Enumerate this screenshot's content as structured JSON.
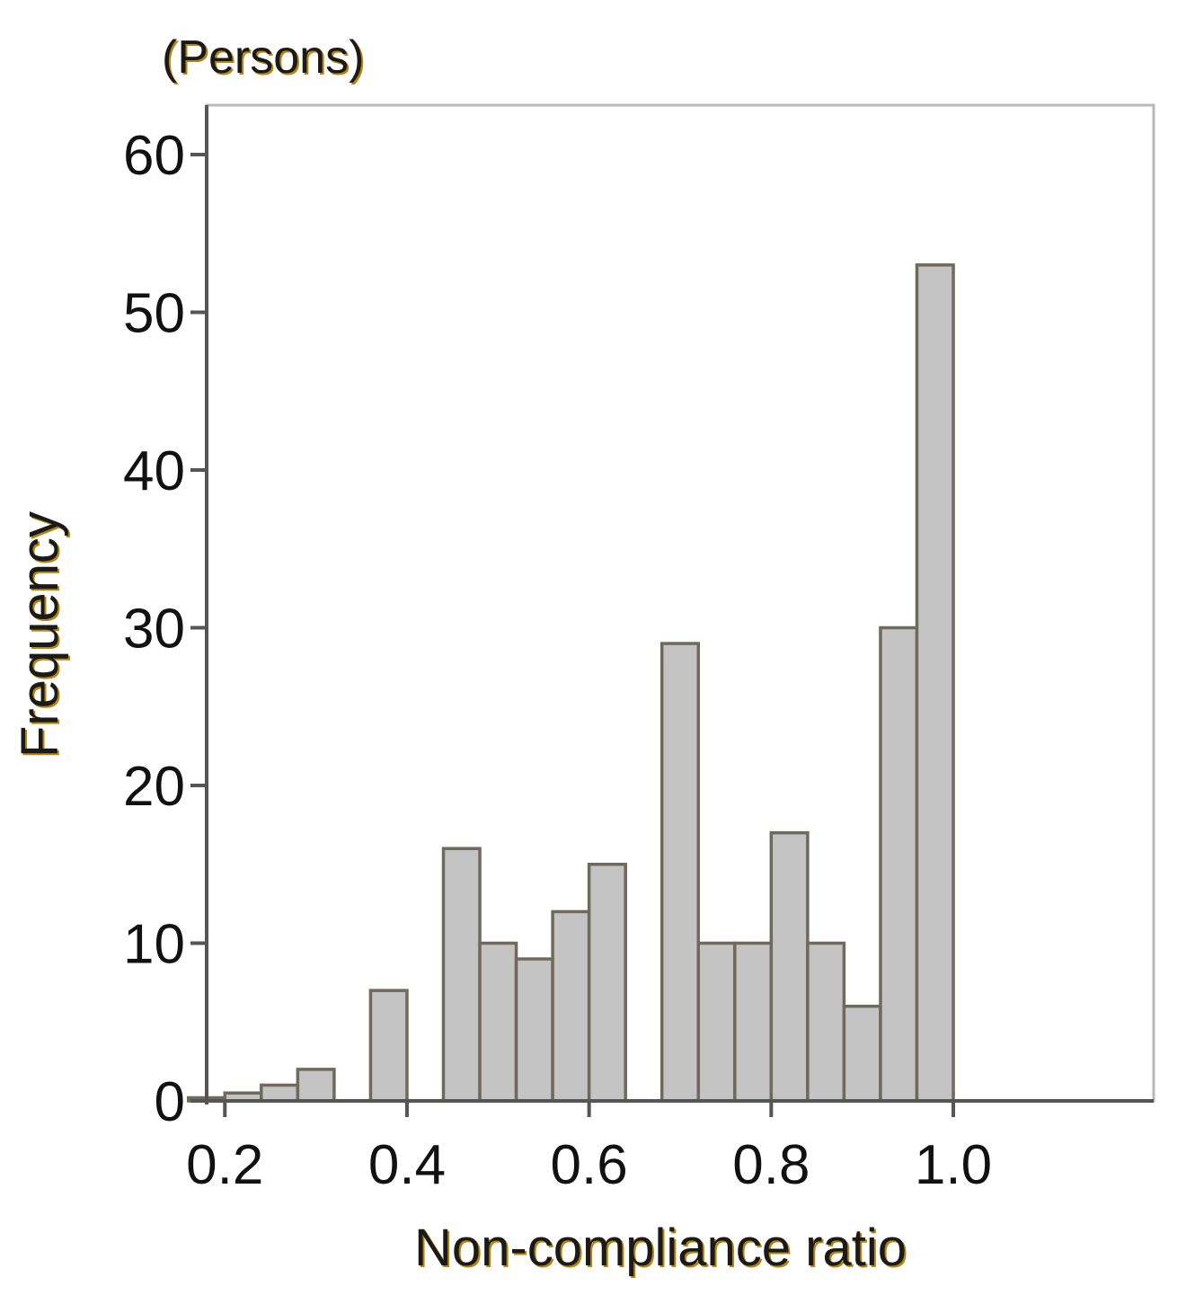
{
  "chart_data": {
    "type": "bar",
    "unit_label": "(Persons)",
    "xlabel": "Non-compliance ratio",
    "ylabel": "Frequency",
    "xlim": [
      0.18,
      1.22
    ],
    "ylim": [
      0,
      60
    ],
    "bin_width": 0.04,
    "x_ticks": [
      0.2,
      0.4,
      0.6,
      0.8,
      1.0
    ],
    "x_tick_labels": [
      "0.2",
      "0.4",
      "0.6",
      "0.8",
      "1.0"
    ],
    "y_ticks": [
      0,
      10,
      20,
      30,
      40,
      50,
      60
    ],
    "y_tick_labels": [
      "0",
      "10",
      "20",
      "30",
      "40",
      "50",
      "60"
    ],
    "bins": [
      {
        "start": 0.16,
        "end": 0.2,
        "count": 0.2
      },
      {
        "start": 0.2,
        "end": 0.24,
        "count": 0.5
      },
      {
        "start": 0.24,
        "end": 0.28,
        "count": 1
      },
      {
        "start": 0.28,
        "end": 0.32,
        "count": 2
      },
      {
        "start": 0.32,
        "end": 0.36,
        "count": 0
      },
      {
        "start": 0.36,
        "end": 0.4,
        "count": 7
      },
      {
        "start": 0.4,
        "end": 0.44,
        "count": 0
      },
      {
        "start": 0.44,
        "end": 0.48,
        "count": 16
      },
      {
        "start": 0.48,
        "end": 0.52,
        "count": 10
      },
      {
        "start": 0.52,
        "end": 0.56,
        "count": 9
      },
      {
        "start": 0.56,
        "end": 0.6,
        "count": 12
      },
      {
        "start": 0.6,
        "end": 0.64,
        "count": 15
      },
      {
        "start": 0.64,
        "end": 0.68,
        "count": 0
      },
      {
        "start": 0.68,
        "end": 0.72,
        "count": 29
      },
      {
        "start": 0.72,
        "end": 0.76,
        "count": 10
      },
      {
        "start": 0.76,
        "end": 0.8,
        "count": 10
      },
      {
        "start": 0.8,
        "end": 0.84,
        "count": 17
      },
      {
        "start": 0.84,
        "end": 0.88,
        "count": 10
      },
      {
        "start": 0.88,
        "end": 0.92,
        "count": 6
      },
      {
        "start": 0.92,
        "end": 0.96,
        "count": 30
      },
      {
        "start": 0.96,
        "end": 1.0,
        "count": 53
      }
    ],
    "grid": false,
    "colors": {
      "bar_fill": "#c4c4c4",
      "bar_stroke": "#6e6a5c",
      "axis": "#555555",
      "frame": "#b8b8b8",
      "axis_title_text": "#1a1a1a",
      "axis_title_shadow": "#b8860b",
      "unit_label_text": "#1a1a1a",
      "unit_label_shadow": "#b8860b"
    }
  }
}
